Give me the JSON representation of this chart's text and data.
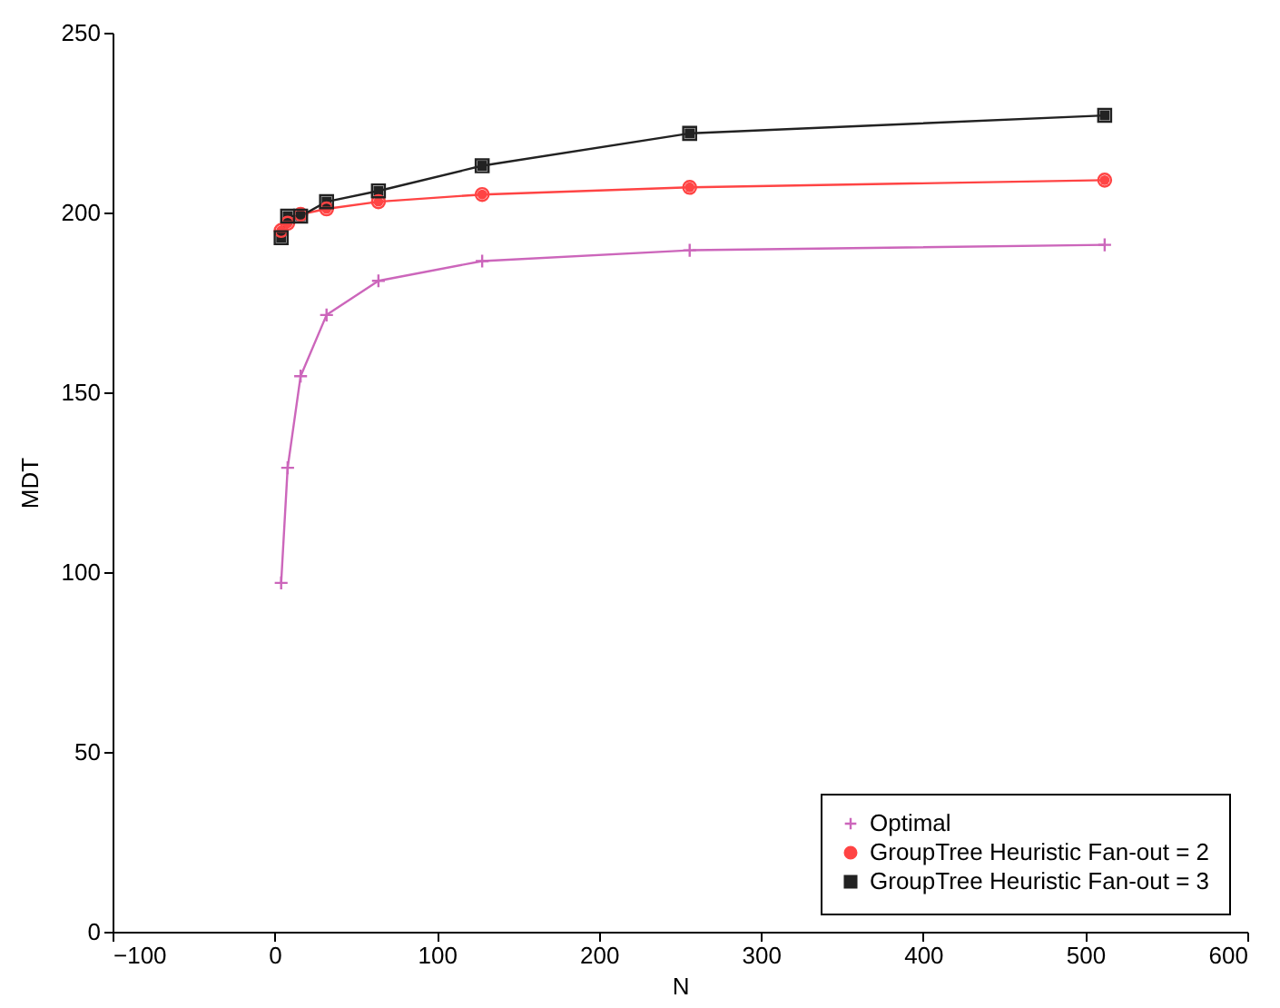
{
  "chart_data": {
    "type": "line",
    "xlabel": "N",
    "ylabel": "MDT",
    "xlim": [
      -100,
      600
    ],
    "xticks": [
      -100,
      0,
      100,
      200,
      300,
      400,
      500,
      600
    ],
    "ylim": [
      0,
      250
    ],
    "yticks": [
      0,
      50,
      100,
      150,
      200,
      250
    ],
    "grid": false,
    "legend": "bottom right",
    "x": [
      4,
      8,
      16,
      32,
      64,
      128,
      256,
      512
    ],
    "series": [
      {
        "name": "Optimal",
        "color": "#cc66bb",
        "marker": "cross",
        "values": [
          97,
          129,
          154.5,
          171.5,
          181,
          186.5,
          189.5,
          191
        ]
      },
      {
        "name": "GroupTree Heuristic Fan-out = 2",
        "color": "#ff4444",
        "marker": "circle",
        "values": [
          195,
          197,
          199.5,
          201,
          203,
          205,
          207,
          209
        ]
      },
      {
        "name": "GroupTree Heuristic Fan-out = 3",
        "color": "#222222",
        "marker": "square",
        "values": [
          193,
          199,
          199,
          203,
          206,
          213,
          222,
          227
        ]
      }
    ]
  }
}
